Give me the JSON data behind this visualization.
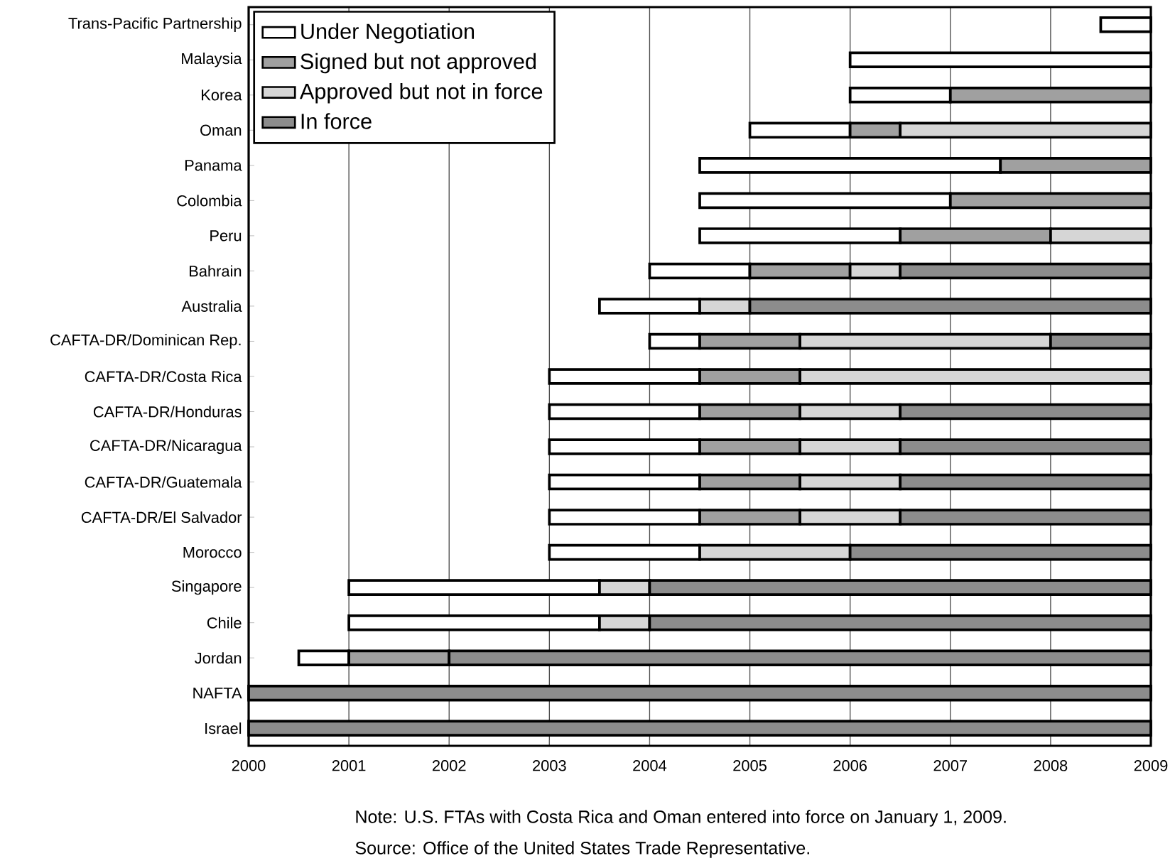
{
  "chart_data": {
    "type": "bar",
    "orientation": "horizontal",
    "categories": [
      "Trans-Pacific Partnership",
      "Malaysia",
      "Korea",
      "Oman",
      "Panama",
      "Colombia",
      "Peru",
      "Bahrain",
      "Australia",
      "CAFTA-DR/Dominican Rep.",
      "CAFTA-DR/Costa Rica",
      "CAFTA-DR/Honduras",
      "CAFTA-DR/Nicaragua",
      "CAFTA-DR/Guatemala",
      "CAFTA-DR/El Salvador",
      "Morocco",
      "Singapore",
      "Chile",
      "Jordan",
      "NAFTA",
      "Israel"
    ],
    "series": [
      {
        "name": "Under  Negotiation",
        "color": "#ffffff",
        "base": [
          2008.5,
          2006,
          2006,
          2005,
          2004.5,
          2004.5,
          2004.5,
          2004,
          2003.5,
          2004,
          2003,
          2003,
          2003,
          2003,
          2003,
          2003,
          2001,
          2001,
          2000.5,
          null,
          null
        ],
        "values": [
          0.5,
          3,
          1,
          1,
          3,
          2.5,
          2,
          1,
          1,
          0.5,
          1.5,
          1.5,
          1.5,
          1.5,
          1.5,
          1.5,
          2.5,
          2.5,
          0.5,
          null,
          null
        ]
      },
      {
        "name": "Signed but not approved",
        "color": "#a0a0a0",
        "base": [
          null,
          null,
          2007,
          2006,
          2007.5,
          2007,
          2006.5,
          2005,
          null,
          2004.5,
          2004.5,
          2004.5,
          2004.5,
          2004.5,
          2004.5,
          null,
          null,
          null,
          2001,
          null,
          null
        ],
        "values": [
          null,
          null,
          2,
          0.5,
          1.5,
          2,
          1.5,
          1,
          null,
          1,
          1,
          1,
          1,
          1,
          1,
          null,
          null,
          null,
          1,
          null,
          null
        ]
      },
      {
        "name": "Approved but not in force",
        "color": "#d6d6d6",
        "base": [
          null,
          null,
          null,
          2006.5,
          null,
          null,
          2008,
          2006,
          2004.5,
          2005.5,
          2005.5,
          2005.5,
          2005.5,
          2005.5,
          2005.5,
          2004.5,
          2003.5,
          2003.5,
          null,
          null,
          null
        ],
        "values": [
          null,
          null,
          null,
          2.5,
          null,
          null,
          1,
          0.5,
          0.5,
          2.5,
          3.5,
          1,
          1,
          1,
          1,
          1.5,
          0.5,
          0.5,
          null,
          null,
          null
        ]
      },
      {
        "name": "In force",
        "color": "#8c8c8c",
        "base": [
          null,
          null,
          null,
          null,
          null,
          null,
          null,
          2006.5,
          2005,
          2008,
          null,
          2006.5,
          2006.5,
          2006.5,
          2006.5,
          2006,
          2004,
          2004,
          2002,
          2000,
          2000
        ],
        "values": [
          null,
          null,
          null,
          null,
          null,
          null,
          null,
          2.5,
          4,
          1,
          null,
          2.5,
          2.5,
          2.5,
          2.5,
          3,
          5,
          5,
          7,
          9,
          9
        ]
      }
    ],
    "xlim": [
      2000,
      2009
    ],
    "xticks": [
      2000,
      2001,
      2002,
      2003,
      2004,
      2005,
      2006,
      2007,
      2008,
      2009
    ],
    "grid": "x",
    "legend": "top left",
    "annotations": [
      "Note: U.S. FTAs with Costa Rica and Oman entered into force on January 1, 2009.",
      "Source: Office of the United States Trade Representative."
    ]
  }
}
